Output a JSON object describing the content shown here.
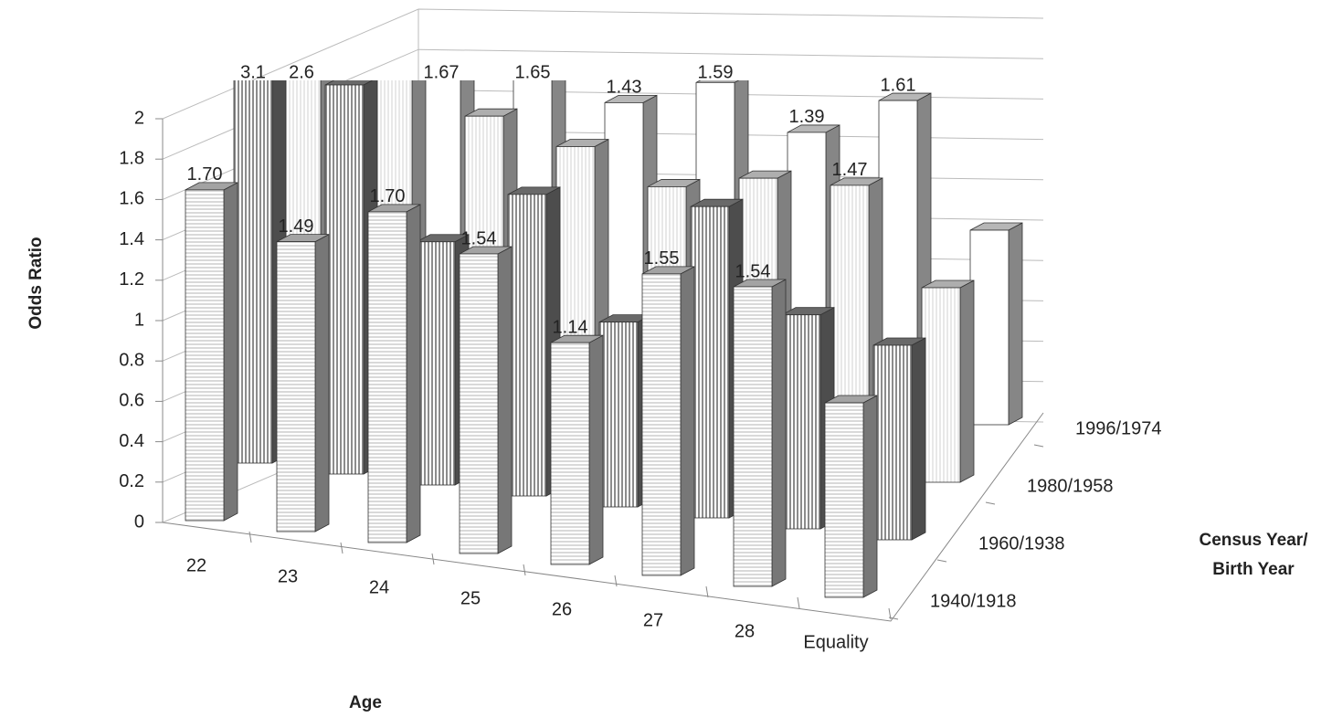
{
  "chart_data": {
    "type": "bar3d",
    "ylabel": "Odds Ratio",
    "xlabel": "Age",
    "zlabel": [
      "Census Year/",
      "Birth Year"
    ],
    "categories": [
      "22",
      "23",
      "24",
      "25",
      "26",
      "27",
      "28",
      "Equality"
    ],
    "ylim": [
      0,
      2
    ],
    "yticks": [
      0,
      0.2,
      0.4,
      0.6,
      0.8,
      1,
      1.2,
      1.4,
      1.6,
      1.8,
      2
    ],
    "grid": true,
    "series": [
      {
        "name": "1940/1918",
        "color": "#d9d9d9",
        "values": [
          1.7,
          1.49,
          1.7,
          1.54,
          1.14,
          1.55,
          1.54,
          1
        ],
        "value_labels": [
          "1.70",
          "1.49",
          "1.70",
          "1.54",
          "1.14",
          "1.55",
          "1.54",
          null
        ]
      },
      {
        "name": "1960/1938",
        "color": "#8c8c8c",
        "values": [
          3.1,
          2.0,
          1.25,
          1.55,
          0.95,
          1.6,
          1.1,
          1
        ],
        "value_labels": [
          "3.1",
          null,
          null,
          null,
          null,
          null,
          null,
          null
        ]
      },
      {
        "name": "1980/1958",
        "color": "#e8e8e8",
        "values": [
          2.6,
          1.75,
          1.6,
          1.5,
          1.35,
          1.45,
          1.47,
          1
        ],
        "value_labels": [
          "2.6",
          null,
          null,
          null,
          null,
          null,
          "1.47",
          null
        ]
      },
      {
        "name": "1996/1974",
        "color": "#f4f4f4",
        "values": [
          1.9,
          1.67,
          1.65,
          1.43,
          1.59,
          1.39,
          1.61,
          1
        ],
        "value_labels": [
          null,
          "1.67",
          "1.65",
          "1.43",
          "1.59",
          "1.39",
          "1.61",
          null
        ]
      }
    ]
  }
}
